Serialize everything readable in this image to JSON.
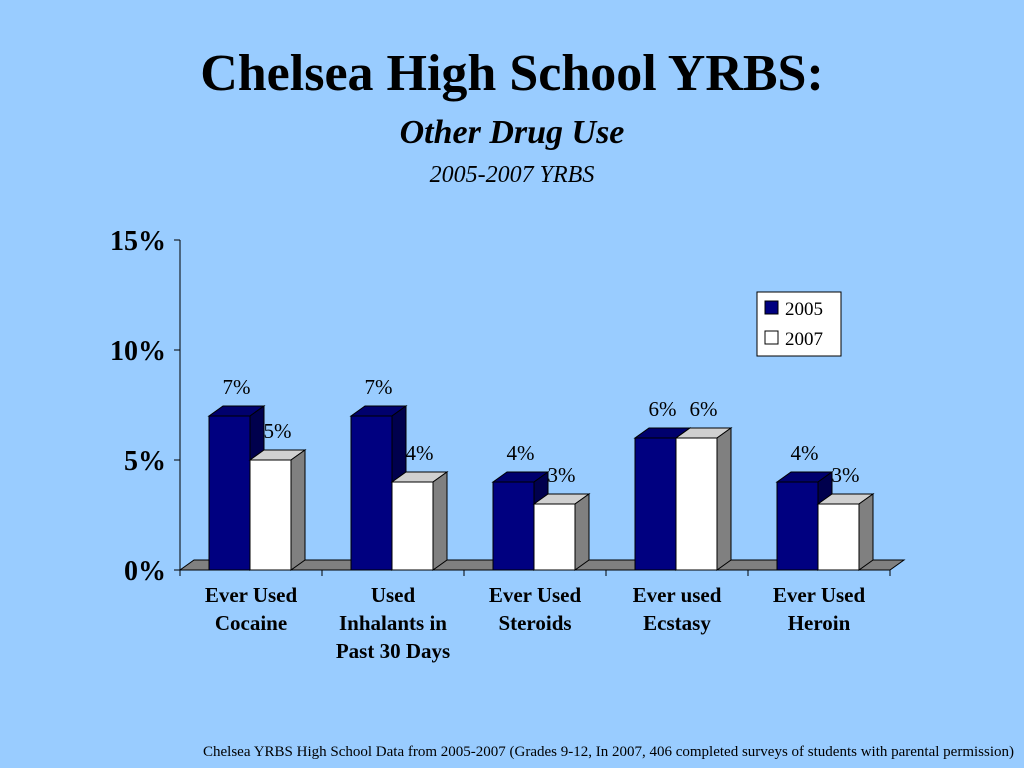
{
  "header": {
    "title": "Chelsea High School YRBS:",
    "subtitle": "Other Drug Use",
    "subtitle2": "2005-2007 YRBS"
  },
  "footer": {
    "note": "Chelsea YRBS High School Data from 2005-2007 (Grades 9-12, In 2007, 406 completed surveys of students with parental permission)"
  },
  "colors": {
    "background": "#99ccff",
    "series_2005": "#000080",
    "series_2007": "#ffffff",
    "floor": "#808080"
  },
  "chart_data": {
    "type": "bar",
    "categories": [
      [
        "Ever Used",
        "Cocaine"
      ],
      [
        "Used",
        "Inhalants in",
        "Past 30 Days"
      ],
      [
        "Ever Used",
        "Steroids"
      ],
      [
        "Ever used",
        "Ecstasy"
      ],
      [
        "Ever Used",
        "Heroin"
      ]
    ],
    "series": [
      {
        "name": "2005",
        "values": [
          7,
          7,
          4,
          6,
          4
        ],
        "labels": [
          "7%",
          "7%",
          "4%",
          "6%",
          "4%"
        ]
      },
      {
        "name": "2007",
        "values": [
          5,
          4,
          3,
          6,
          3
        ],
        "labels": [
          "5%",
          "4%",
          "3%",
          "6%",
          "3%"
        ]
      }
    ],
    "yticks": [
      0,
      5,
      10,
      15
    ],
    "ytick_labels": [
      "0%",
      "5%",
      "10%",
      "15%"
    ],
    "ylim": [
      0,
      15
    ],
    "legend_position": "top-right",
    "grid": false
  }
}
